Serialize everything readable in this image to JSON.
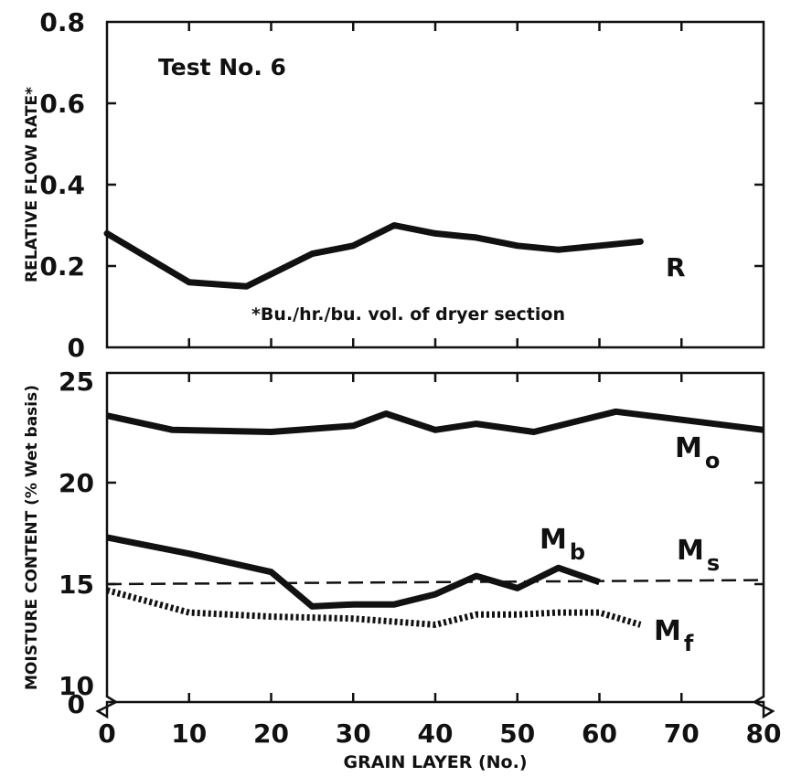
{
  "chart_data": [
    {
      "type": "line",
      "annotation": "Test No. 6",
      "ylabel": "RELATIVE FLOW RATE*",
      "footnote": "*Bu./hr./bu. vol. of dryer section",
      "xlim": [
        0,
        80
      ],
      "ylim": [
        0,
        0.8
      ],
      "yticks": [
        "0",
        "0.2",
        "0.4",
        "0.6",
        "0.8"
      ],
      "series": [
        {
          "name": "R",
          "style": "solid",
          "x": [
            0,
            10,
            17,
            25,
            30,
            35,
            40,
            45,
            50,
            55,
            60,
            65
          ],
          "y": [
            0.28,
            0.16,
            0.15,
            0.23,
            0.25,
            0.3,
            0.28,
            0.27,
            0.25,
            0.24,
            0.25,
            0.26
          ]
        }
      ]
    },
    {
      "type": "line",
      "ylabel": "MOISTURE CONTENT (% Wet basis)",
      "xlabel": "GRAIN LAYER (No.)",
      "xlim": [
        0,
        80
      ],
      "ylim": [
        10,
        25
      ],
      "xticks": [
        "0",
        "10",
        "20",
        "30",
        "40",
        "50",
        "60",
        "70",
        "80"
      ],
      "yticks": [
        "10",
        "15",
        "20",
        "25"
      ],
      "axis_break_label": "0",
      "series": [
        {
          "label_main": "M",
          "label_sub": "o",
          "style": "solid",
          "x": [
            0,
            8,
            20,
            30,
            34,
            40,
            45,
            52,
            62,
            70,
            80
          ],
          "y": [
            23.3,
            22.6,
            22.5,
            22.8,
            23.4,
            22.6,
            22.9,
            22.5,
            23.5,
            23.1,
            22.6
          ]
        },
        {
          "label_main": "M",
          "label_sub": "b",
          "style": "solid",
          "x": [
            0,
            10,
            20,
            25,
            30,
            35,
            40,
            45,
            50,
            55,
            60
          ],
          "y": [
            17.3,
            16.5,
            15.6,
            13.9,
            14.0,
            14.0,
            14.5,
            15.4,
            14.8,
            15.8,
            15.1
          ]
        },
        {
          "label_main": "M",
          "label_sub": "s",
          "style": "dashed",
          "x": [
            0,
            80
          ],
          "y": [
            15.0,
            15.2
          ]
        },
        {
          "label_main": "M",
          "label_sub": "f",
          "style": "dotted",
          "x": [
            0,
            10,
            20,
            30,
            40,
            45,
            50,
            55,
            60,
            65
          ],
          "y": [
            14.7,
            13.6,
            13.4,
            13.3,
            13.0,
            13.5,
            13.5,
            13.6,
            13.6,
            13.0
          ]
        }
      ]
    }
  ]
}
